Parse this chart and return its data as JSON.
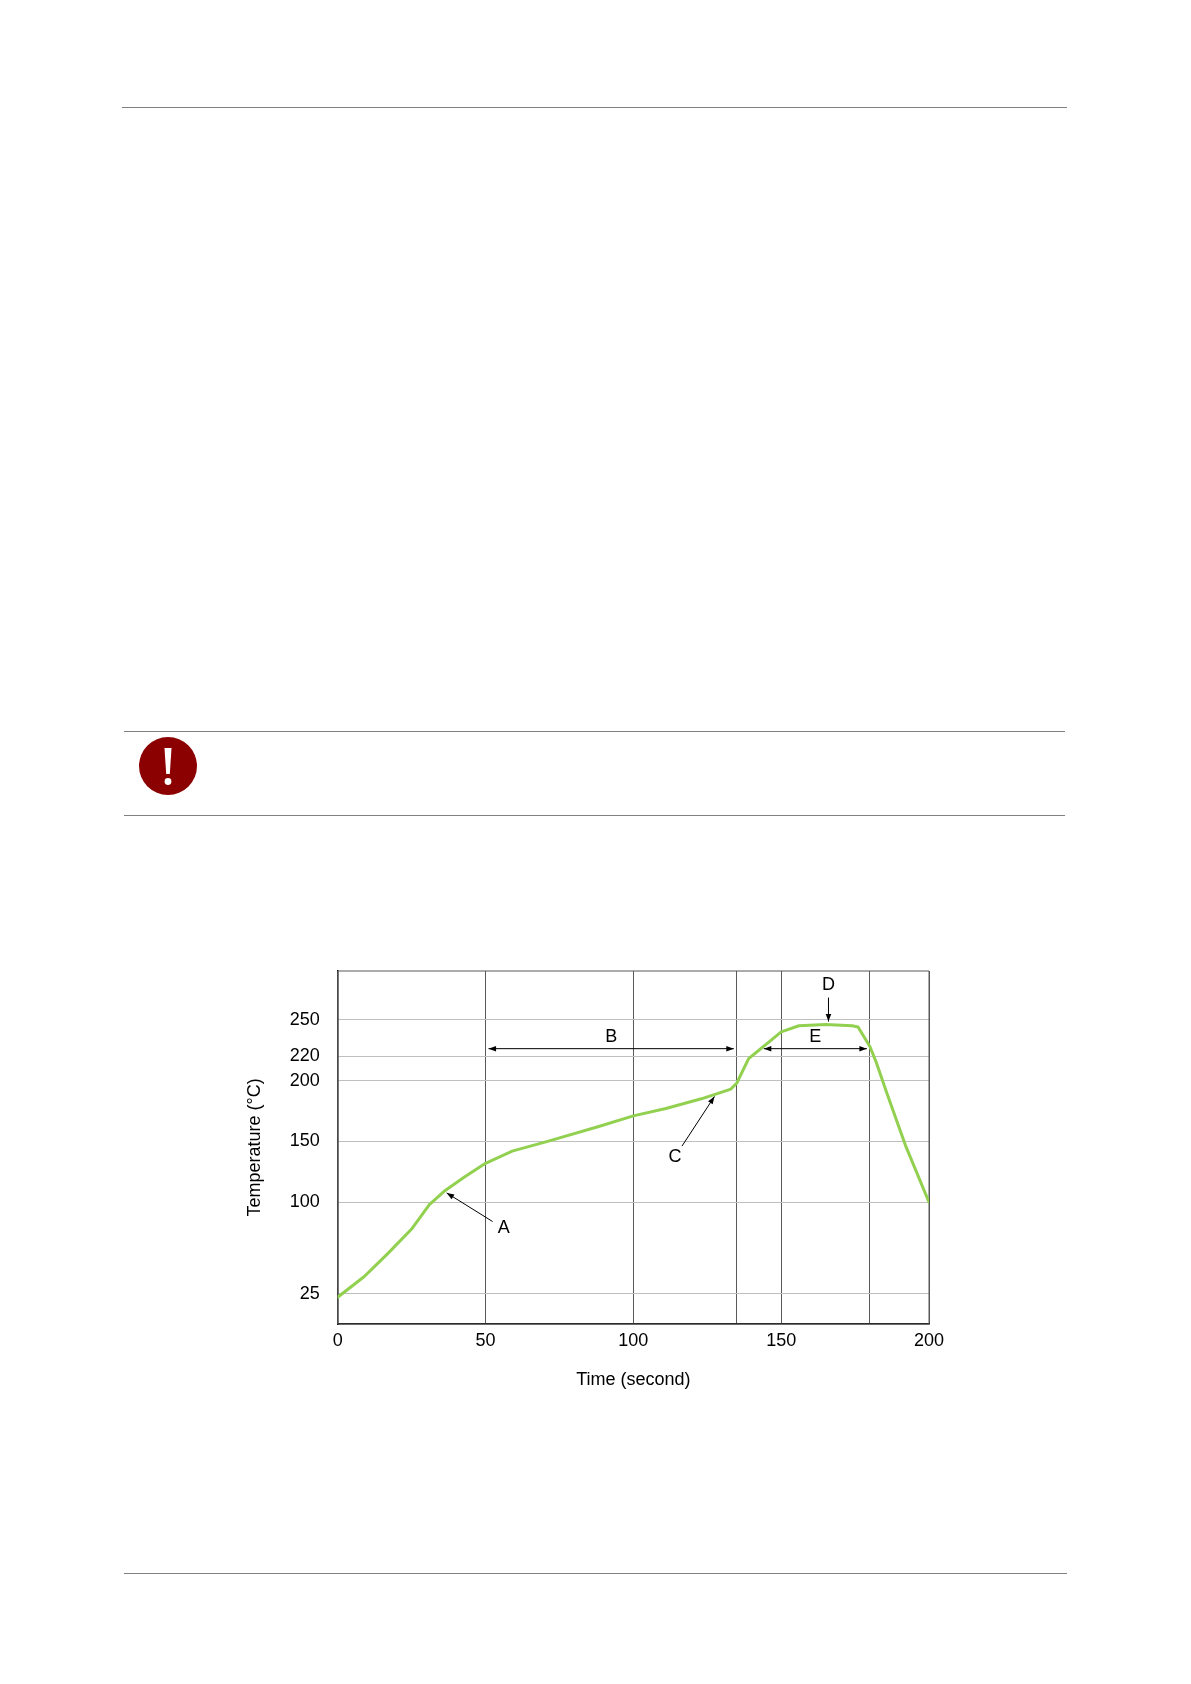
{
  "chart_data": {
    "type": "line",
    "xlabel": "Time (second)",
    "ylabel": "Temperature (°C)",
    "x": [
      0,
      9,
      17,
      25,
      31,
      36,
      43,
      50,
      59,
      71,
      88,
      100,
      111,
      123,
      133,
      135,
      139,
      145,
      150,
      156,
      165,
      174,
      176,
      180,
      182,
      186,
      192,
      200
    ],
    "series": [
      {
        "color": "#92d050",
        "values": [
          22,
          39,
          58,
          78,
          98,
          109,
          121,
          132,
          142,
          150,
          162,
          171,
          177,
          185,
          193,
          198,
          218,
          230,
          240,
          245,
          246,
          245,
          244,
          228,
          216,
          188,
          147,
          100
        ]
      }
    ],
    "xlim": [
      0,
      200
    ],
    "ylim": [
      0,
      290
    ],
    "xticks": [
      0,
      50,
      100,
      {
        "value": 135,
        "label": null
      },
      150,
      {
        "value": 180,
        "label": null
      },
      200
    ],
    "yticks": [
      25,
      100,
      150,
      200,
      220,
      250
    ],
    "grid": true,
    "annotations": [
      {
        "text": "A",
        "x": 36,
        "y": 109
      },
      "B",
      {
        "text": "C",
        "x": 128,
        "y": 189
      },
      {
        "text": "D",
        "x": 166,
        "y": 246
      },
      "E"
    ]
  }
}
